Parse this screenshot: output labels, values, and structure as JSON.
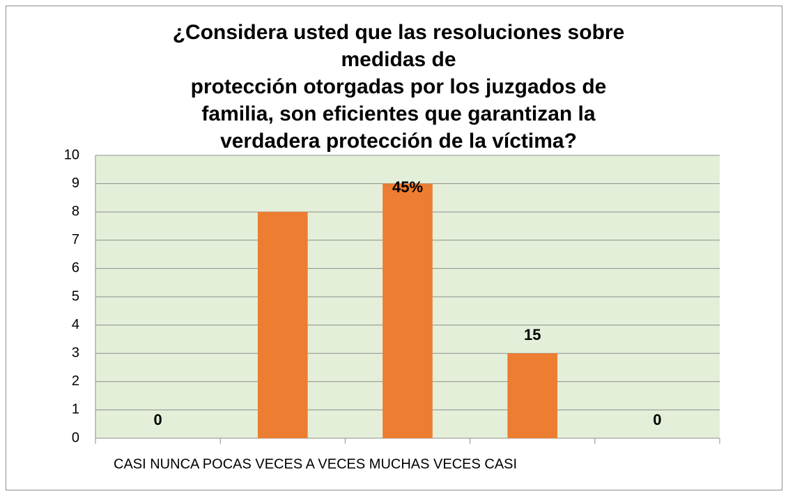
{
  "chart_data": {
    "type": "bar",
    "title": [
      "¿Considera usted que las resoluciones sobre",
      "medidas de",
      "protección otorgadas por los juzgados de",
      "familia, son eficientes que garantizan la",
      "verdadera protección de la víctima?"
    ],
    "categories": [
      null,
      null,
      null,
      null,
      null
    ],
    "x_axis_label": "CASI NUNCA POCAS VECES A VECES MUCHAS VECES CASI",
    "values": [
      0,
      8,
      9,
      3,
      0
    ],
    "annotations": [
      "0",
      null,
      "45%",
      "15",
      "0"
    ],
    "color": "#ed7d31",
    "ylim": [
      0,
      10
    ],
    "yticks": [
      0,
      1,
      2,
      3,
      4,
      5,
      6,
      7,
      8,
      9,
      10
    ],
    "grid": true
  }
}
